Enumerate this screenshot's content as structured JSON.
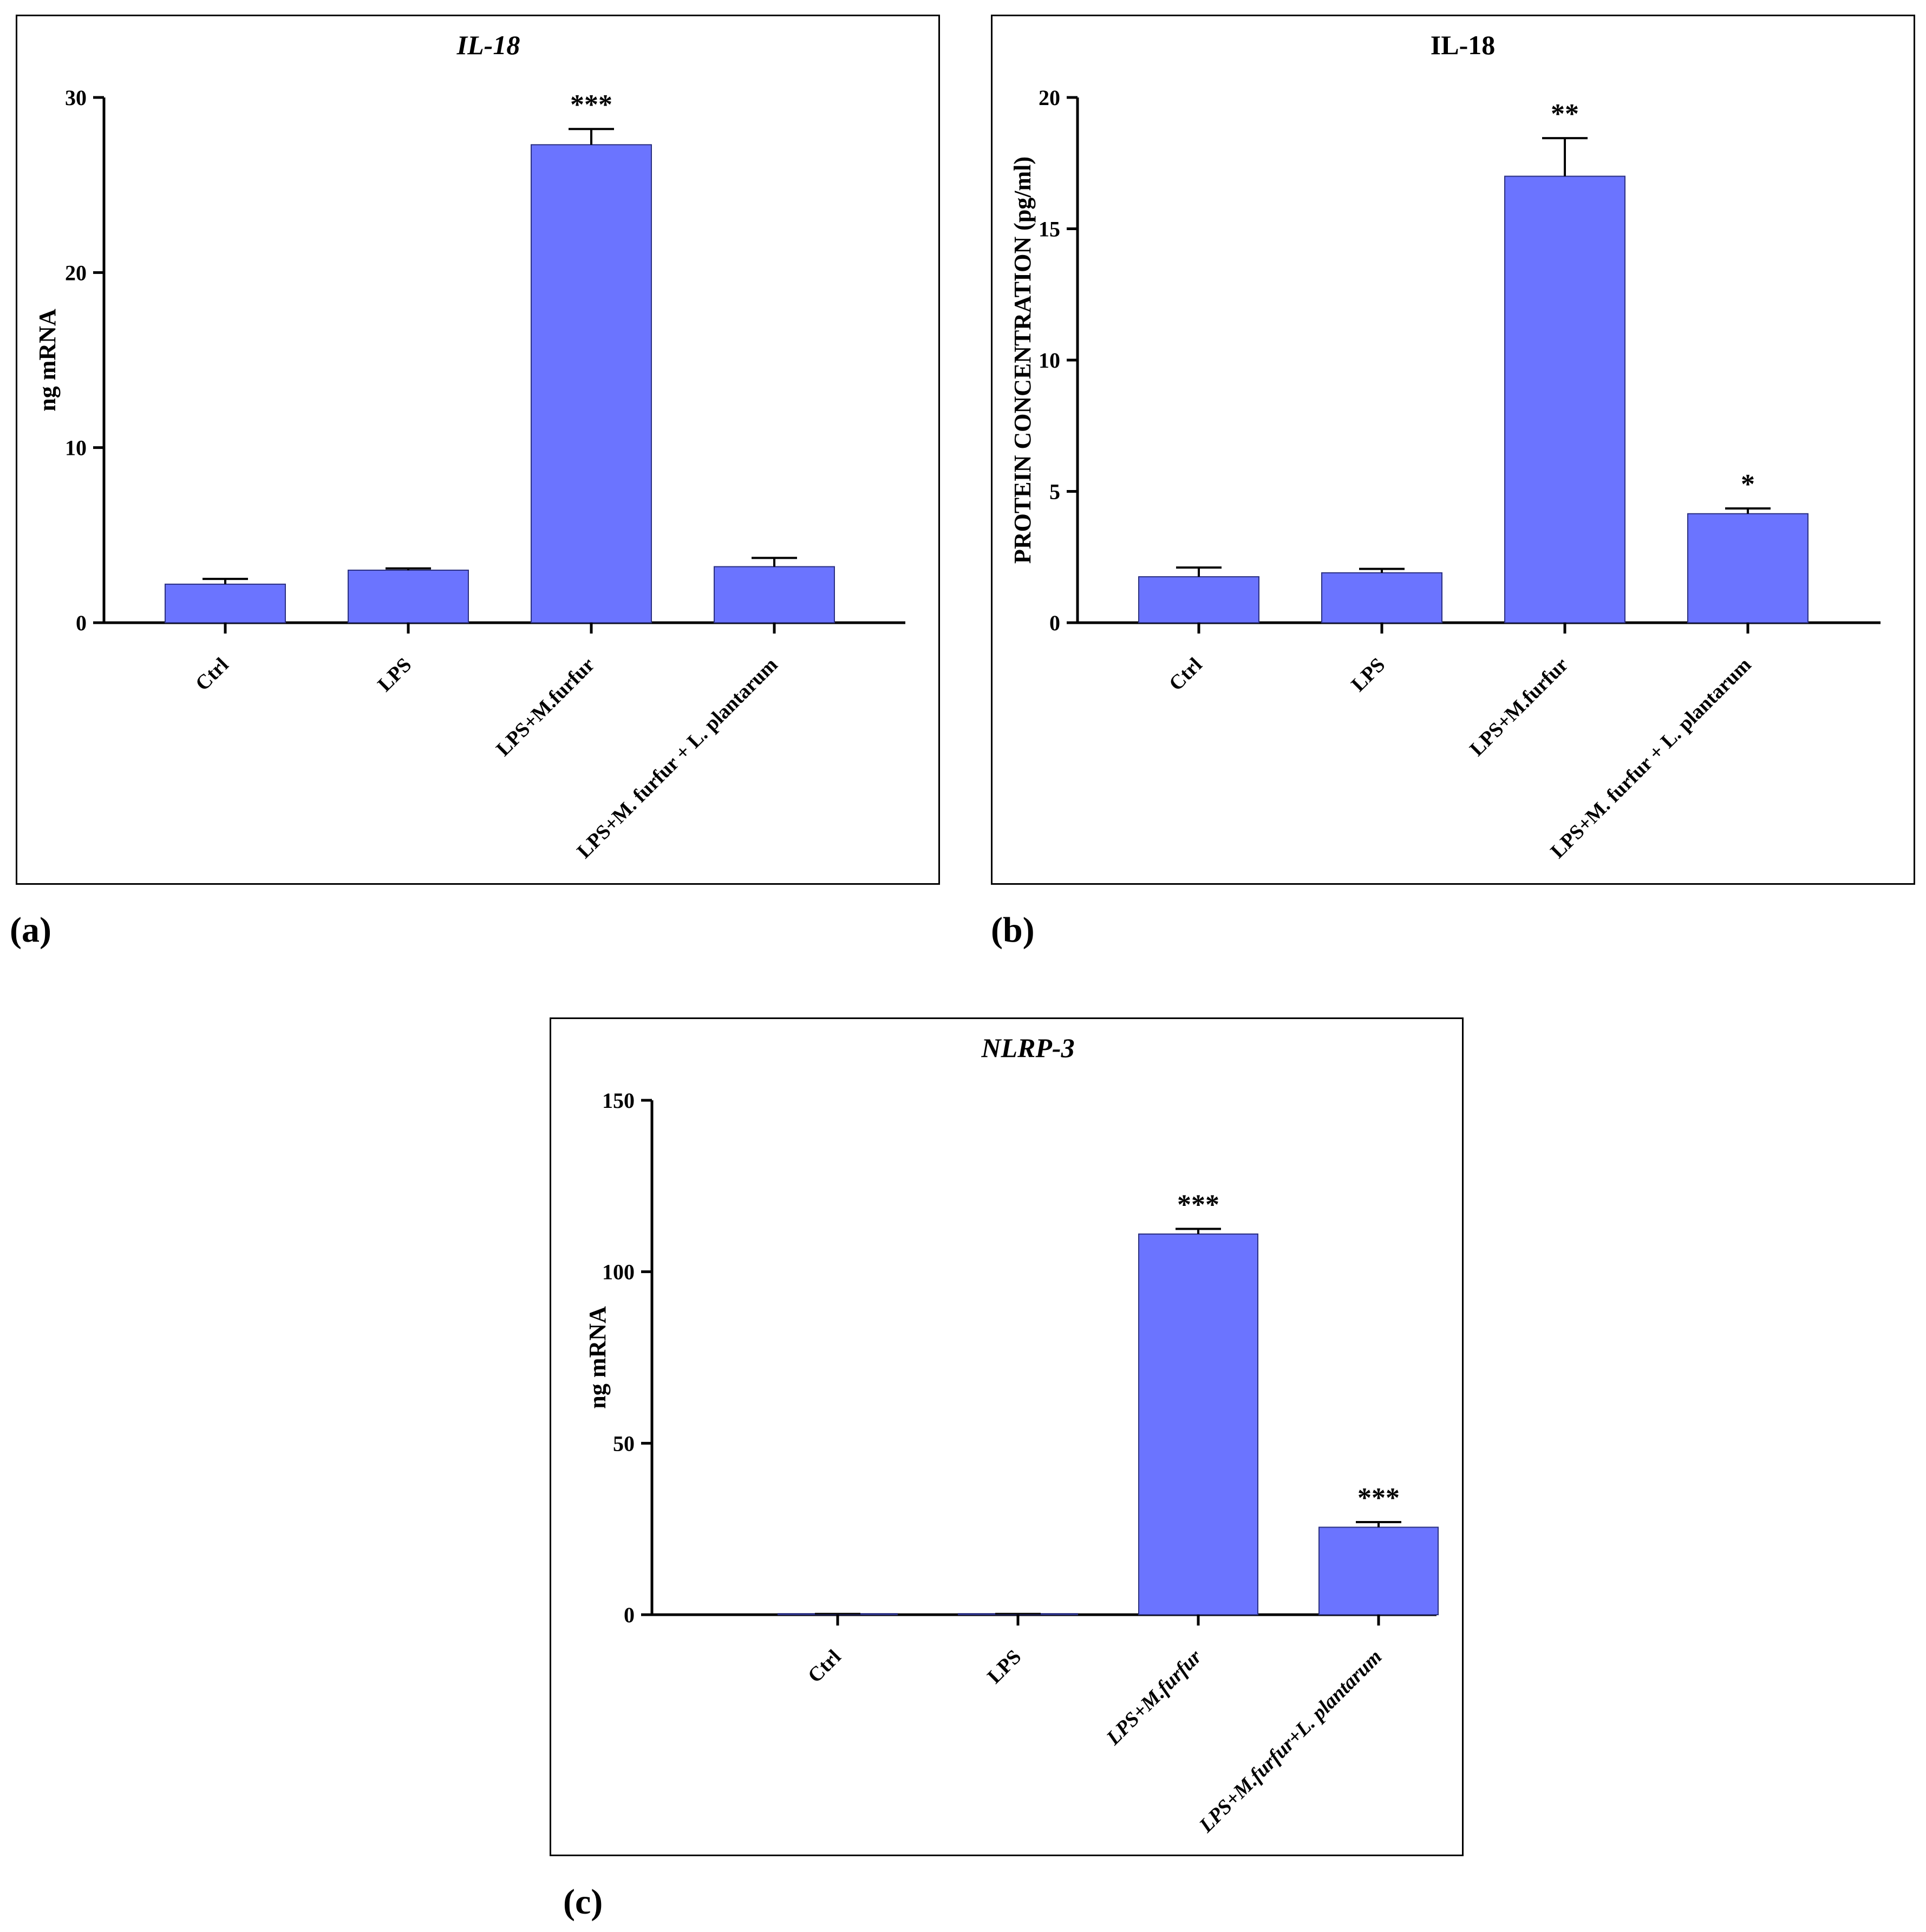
{
  "panel_labels": {
    "a": "(a)",
    "b": "(b)",
    "c": "(c)"
  },
  "colors": {
    "bar_fill": "#6B74FF",
    "bar_stroke": "#2a2f80",
    "axis": "#000000"
  },
  "chart_data": [
    {
      "id": "a",
      "type": "bar",
      "title": "IL-18",
      "title_italic": true,
      "ylabel": "ng mRNA",
      "ylim": [
        0,
        30
      ],
      "yticks": [
        0,
        10,
        20,
        30
      ],
      "categories": [
        {
          "label": "Ctrl",
          "italic": false
        },
        {
          "label": "LPS",
          "italic": false
        },
        {
          "label": "LPS+M.furfur",
          "italic": false
        },
        {
          "label": "LPS+M. furfur + L. plantarum",
          "italic": false
        }
      ],
      "values": [
        2.2,
        3.0,
        27.3,
        3.2
      ],
      "errors": [
        0.3,
        0.1,
        0.9,
        0.5
      ],
      "significance": [
        "",
        "",
        "***",
        ""
      ]
    },
    {
      "id": "b",
      "type": "bar",
      "title": "IL-18",
      "title_italic": false,
      "ylabel": "PROTEIN CONCENTRATION (pg/ml)",
      "ylim": [
        0,
        20
      ],
      "yticks": [
        0,
        5,
        10,
        15,
        20
      ],
      "categories": [
        {
          "label": "Ctrl",
          "italic": false
        },
        {
          "label": "LPS",
          "italic": false
        },
        {
          "label": "LPS+M.furfur",
          "italic": false
        },
        {
          "label": "LPS+M. furfur + L. plantarum",
          "italic": false
        }
      ],
      "values": [
        1.75,
        1.9,
        17.0,
        4.15
      ],
      "errors": [
        0.35,
        0.15,
        1.45,
        0.2
      ],
      "significance": [
        "",
        "",
        "**",
        "*"
      ]
    },
    {
      "id": "c",
      "type": "bar",
      "title": "NLRP-3",
      "title_italic": true,
      "ylabel": "ng mRNA",
      "ylim": [
        0,
        150
      ],
      "yticks": [
        0,
        50,
        100,
        150
      ],
      "categories": [
        {
          "label": "Ctrl",
          "italic": false
        },
        {
          "label": "LPS",
          "italic": false
        },
        {
          "label": "LPS+M.furfur",
          "italic": true
        },
        {
          "label": "LPS+M.furfur+L. plantarum",
          "italic": true
        }
      ],
      "values": [
        0.3,
        0.3,
        111.0,
        25.5
      ],
      "errors": [
        0.0,
        0.0,
        1.5,
        1.5
      ],
      "significance": [
        "",
        "",
        "***",
        "***"
      ]
    }
  ]
}
